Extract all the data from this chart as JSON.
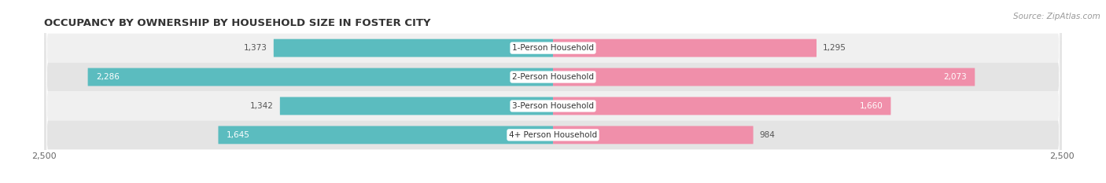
{
  "title": "OCCUPANCY BY OWNERSHIP BY HOUSEHOLD SIZE IN FOSTER CITY",
  "source": "Source: ZipAtlas.com",
  "categories": [
    "1-Person Household",
    "2-Person Household",
    "3-Person Household",
    "4+ Person Household"
  ],
  "owner_values": [
    1373,
    2286,
    1342,
    1645
  ],
  "renter_values": [
    1295,
    2073,
    1660,
    984
  ],
  "owner_color": "#5bbcbf",
  "renter_color": "#f08faa",
  "axis_max": 2500,
  "title_fontsize": 9.5,
  "source_fontsize": 7.5,
  "label_fontsize": 7.5,
  "axis_label_fontsize": 8,
  "category_fontsize": 7.5,
  "background_color": "#ffffff",
  "bar_height": 0.62,
  "row_bg_even": "#f0f0f0",
  "row_bg_odd": "#e4e4e4",
  "dark_label_color": "#555555",
  "white_label_color": "#ffffff",
  "owner_value_color_row0": "#555555",
  "owner_value_color_row1": "#ffffff",
  "owner_value_color_row2": "#555555",
  "owner_value_color_row3": "#ffffff",
  "renter_value_color_row0": "#555555",
  "renter_value_color_row1": "#ffffff",
  "renter_value_color_row2": "#ffffff",
  "renter_value_color_row3": "#555555"
}
